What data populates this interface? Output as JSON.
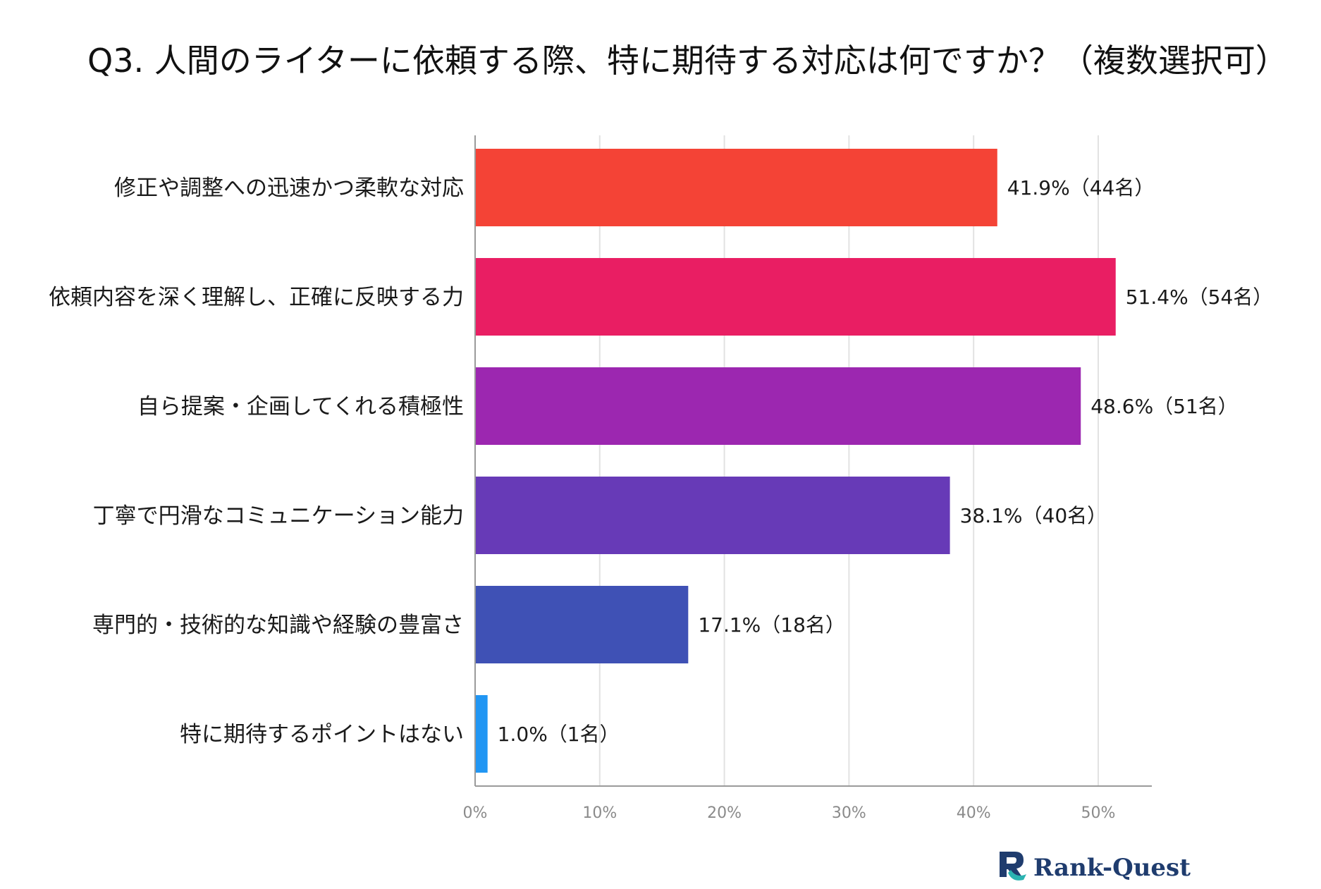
{
  "chart_data": {
    "type": "bar",
    "orientation": "horizontal",
    "title": "Q3. 人間のライターに依頼する際、特に期待する対応は何ですか？（複数選択可）",
    "categories": [
      "修正や調整への迅速かつ柔軟な対応",
      "依頼内容を深く理解し、正確に反映する力",
      "自ら提案・企画してくれる積極性",
      "丁寧で円滑なコミュニケーション能力",
      "専門的・技術的な知識や経験の豊富さ",
      "特に期待するポイントはない"
    ],
    "values": [
      41.9,
      51.4,
      48.6,
      38.1,
      17.1,
      1.0
    ],
    "counts": [
      44,
      54,
      51,
      40,
      18,
      1
    ],
    "data_labels": [
      "41.9%（44名）",
      "51.4%（54名）",
      "48.6%（51名）",
      "38.1%（40名）",
      "17.1%（18名）",
      "1.0%（1名）"
    ],
    "colors": [
      "#f44336",
      "#e91e63",
      "#9c27b0",
      "#673ab7",
      "#3f51b5",
      "#2196f3"
    ],
    "xlim": [
      0,
      54.3
    ],
    "xticks": [
      0,
      10,
      20,
      30,
      40,
      50
    ],
    "xtick_labels": [
      "0%",
      "10%",
      "20%",
      "30%",
      "40%",
      "50%"
    ],
    "xlabel": "",
    "ylabel": "",
    "grid": true
  },
  "logo": {
    "text": "Rank-Quest",
    "mark": "rank-quest-logo-icon",
    "color": "#1f3c6e",
    "accent": "#2bb3b1"
  }
}
